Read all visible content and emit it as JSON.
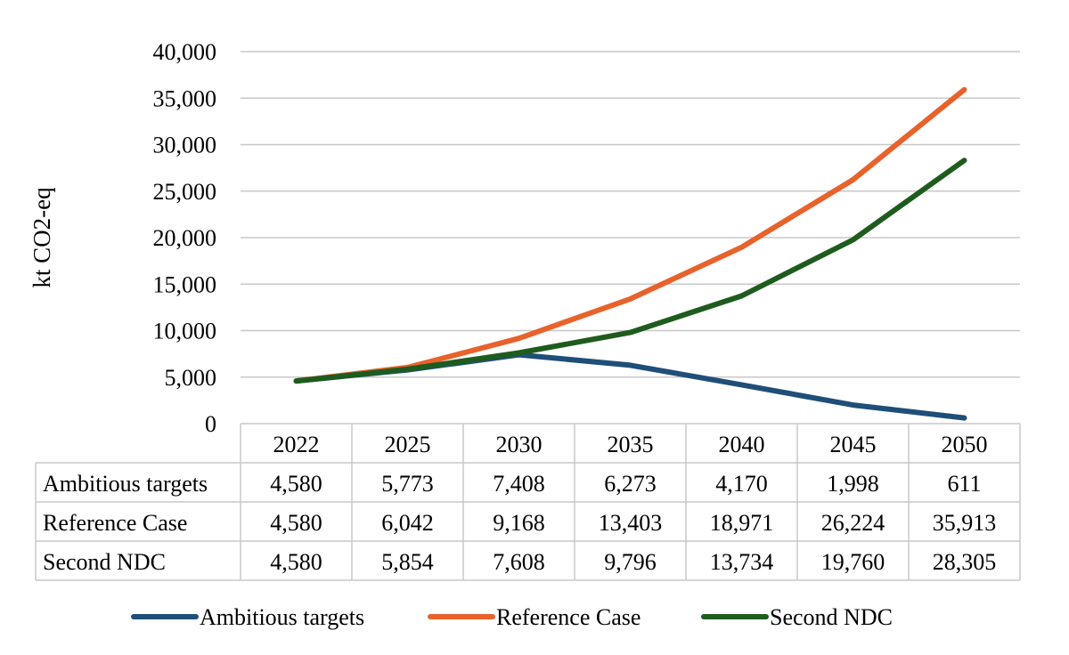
{
  "chart_data": {
    "type": "line",
    "title": "",
    "xlabel": "",
    "ylabel": "kt CO2-eq",
    "ylim": [
      0,
      40000
    ],
    "y_ticks": [
      0,
      5000,
      10000,
      15000,
      20000,
      25000,
      30000,
      35000,
      40000
    ],
    "y_tick_labels": [
      "0",
      "5,000",
      "10,000",
      "15,000",
      "20,000",
      "25,000",
      "30,000",
      "35,000",
      "40,000"
    ],
    "grid": true,
    "legend_position": "bottom",
    "categories": [
      "2022",
      "2025",
      "2030",
      "2035",
      "2040",
      "2045",
      "2050"
    ],
    "series": [
      {
        "name": "Ambitious targets",
        "color": "#1f4e79",
        "values": [
          4580,
          5773,
          7408,
          6273,
          4170,
          1998,
          611
        ],
        "value_labels": [
          "4,580",
          "5,773",
          "7,408",
          "6,273",
          "4,170",
          "1,998",
          "611"
        ]
      },
      {
        "name": "Reference Case",
        "color": "#e8622c",
        "values": [
          4580,
          6042,
          9168,
          13403,
          18971,
          26224,
          35913
        ],
        "value_labels": [
          "4,580",
          "6,042",
          "9,168",
          "13,403",
          "18,971",
          "26,224",
          "35,913"
        ]
      },
      {
        "name": "Second NDC",
        "color": "#1e5c1e",
        "values": [
          4580,
          5854,
          7608,
          9796,
          13734,
          19760,
          28305
        ],
        "value_labels": [
          "4,580",
          "5,854",
          "7,608",
          "9,796",
          "13,734",
          "19,760",
          "28,305"
        ]
      }
    ],
    "data_table": true
  }
}
